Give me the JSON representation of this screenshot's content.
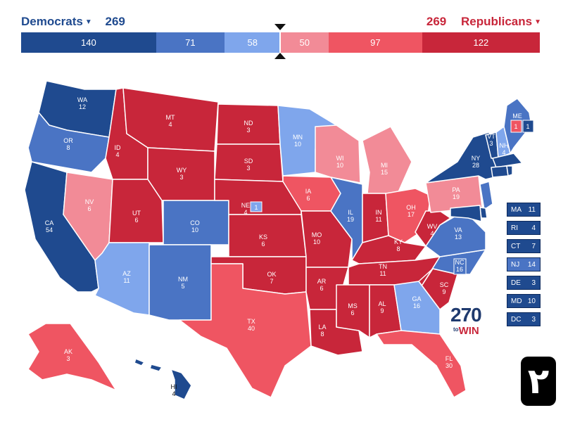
{
  "header": {
    "dem_label": "Democrats",
    "dem_total": "269",
    "rep_label": "Republicans",
    "rep_total": "269"
  },
  "colors": {
    "safe_dem": "#1f4a8f",
    "likely_dem": "#4a74c4",
    "lean_dem": "#7fa6ec",
    "lean_rep": "#f28b97",
    "likely_rep": "#ef5562",
    "safe_rep": "#c8263a"
  },
  "rating_bar": [
    {
      "label": "140",
      "votes": 140,
      "category": "safe_dem"
    },
    {
      "label": "71",
      "votes": 71,
      "category": "likely_dem"
    },
    {
      "label": "58",
      "votes": 58,
      "category": "lean_dem"
    },
    {
      "label": "50",
      "votes": 50,
      "category": "lean_rep"
    },
    {
      "label": "97",
      "votes": 97,
      "category": "likely_rep"
    },
    {
      "label": "122",
      "votes": 122,
      "category": "safe_rep"
    }
  ],
  "states": [
    {
      "abbr": "WA",
      "votes": "12",
      "category": "safe_dem"
    },
    {
      "abbr": "OR",
      "votes": "8",
      "category": "likely_dem"
    },
    {
      "abbr": "CA",
      "votes": "54",
      "category": "safe_dem"
    },
    {
      "abbr": "NV",
      "votes": "6",
      "category": "lean_rep"
    },
    {
      "abbr": "ID",
      "votes": "4",
      "category": "safe_rep"
    },
    {
      "abbr": "MT",
      "votes": "4",
      "category": "safe_rep"
    },
    {
      "abbr": "WY",
      "votes": "3",
      "category": "safe_rep"
    },
    {
      "abbr": "UT",
      "votes": "6",
      "category": "safe_rep"
    },
    {
      "abbr": "AZ",
      "votes": "11",
      "category": "lean_dem"
    },
    {
      "abbr": "CO",
      "votes": "10",
      "category": "likely_dem"
    },
    {
      "abbr": "NM",
      "votes": "5",
      "category": "likely_dem"
    },
    {
      "abbr": "ND",
      "votes": "3",
      "category": "safe_rep"
    },
    {
      "abbr": "SD",
      "votes": "3",
      "category": "safe_rep"
    },
    {
      "abbr": "NE",
      "votes": "4",
      "category": "safe_rep"
    },
    {
      "abbr": "KS",
      "votes": "6",
      "category": "safe_rep"
    },
    {
      "abbr": "OK",
      "votes": "7",
      "category": "safe_rep"
    },
    {
      "abbr": "TX",
      "votes": "40",
      "category": "likely_rep"
    },
    {
      "abbr": "MN",
      "votes": "10",
      "category": "lean_dem"
    },
    {
      "abbr": "IA",
      "votes": "6",
      "category": "likely_rep"
    },
    {
      "abbr": "MO",
      "votes": "10",
      "category": "safe_rep"
    },
    {
      "abbr": "AR",
      "votes": "6",
      "category": "safe_rep"
    },
    {
      "abbr": "LA",
      "votes": "8",
      "category": "safe_rep"
    },
    {
      "abbr": "WI",
      "votes": "10",
      "category": "lean_rep"
    },
    {
      "abbr": "IL",
      "votes": "19",
      "category": "likely_dem"
    },
    {
      "abbr": "MI",
      "votes": "15",
      "category": "lean_rep"
    },
    {
      "abbr": "IN",
      "votes": "11",
      "category": "safe_rep"
    },
    {
      "abbr": "OH",
      "votes": "17",
      "category": "likely_rep"
    },
    {
      "abbr": "KY",
      "votes": "8",
      "category": "safe_rep"
    },
    {
      "abbr": "TN",
      "votes": "11",
      "category": "safe_rep"
    },
    {
      "abbr": "MS",
      "votes": "6",
      "category": "safe_rep"
    },
    {
      "abbr": "AL",
      "votes": "9",
      "category": "safe_rep"
    },
    {
      "abbr": "GA",
      "votes": "16",
      "category": "lean_dem"
    },
    {
      "abbr": "FL",
      "votes": "30",
      "category": "likely_rep"
    },
    {
      "abbr": "SC",
      "votes": "9",
      "category": "safe_rep"
    },
    {
      "abbr": "NC",
      "votes": "16",
      "category": "likely_dem"
    },
    {
      "abbr": "VA",
      "votes": "13",
      "category": "likely_dem"
    },
    {
      "abbr": "WV",
      "votes": "4",
      "category": "safe_rep"
    },
    {
      "abbr": "PA",
      "votes": "19",
      "category": "lean_rep"
    },
    {
      "abbr": "NY",
      "votes": "28",
      "category": "safe_dem"
    },
    {
      "abbr": "VT",
      "votes": "3",
      "category": "safe_dem"
    },
    {
      "abbr": "NH",
      "votes": "4",
      "category": "lean_dem"
    },
    {
      "abbr": "ME",
      "votes": "",
      "category": "likely_dem"
    },
    {
      "abbr": "AK",
      "votes": "3",
      "category": "likely_rep"
    },
    {
      "abbr": "HI",
      "votes": "4",
      "category": "safe_dem"
    }
  ],
  "district_boxes": {
    "ne_district": "1",
    "me_district_1": "1",
    "me_district_2": "1"
  },
  "small_states": [
    {
      "abbr": "MA",
      "votes": "11",
      "category": "safe_dem"
    },
    {
      "abbr": "RI",
      "votes": "4",
      "category": "safe_dem"
    },
    {
      "abbr": "CT",
      "votes": "7",
      "category": "safe_dem"
    },
    {
      "abbr": "NJ",
      "votes": "14",
      "category": "likely_dem"
    },
    {
      "abbr": "DE",
      "votes": "3",
      "category": "safe_dem"
    },
    {
      "abbr": "MD",
      "votes": "10",
      "category": "safe_dem"
    },
    {
      "abbr": "DC",
      "votes": "3",
      "category": "safe_dem"
    }
  ],
  "logo": {
    "number": "270",
    "to": "to",
    "win": "WIN"
  },
  "badge": {
    "text": "٢"
  }
}
